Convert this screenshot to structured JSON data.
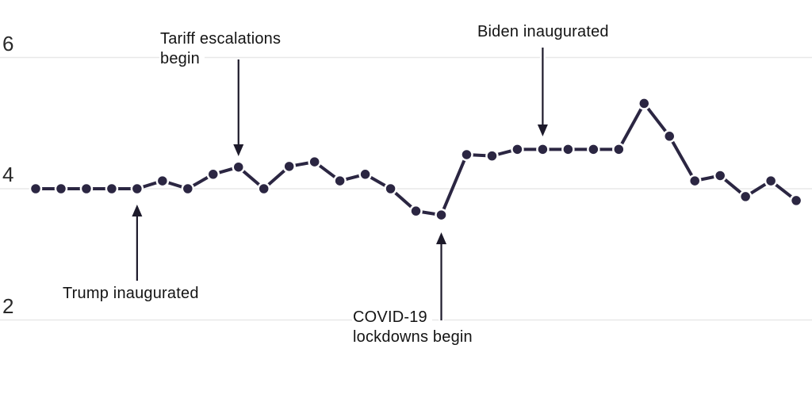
{
  "page": {
    "background_color": "#ffffff"
  },
  "chart_data": {
    "type": "line",
    "title": "",
    "marker": "circle",
    "series": [
      {
        "name": "main-series",
        "values": [
          4.0,
          4.0,
          4.0,
          4.0,
          4.0,
          4.12,
          4.0,
          4.22,
          4.33,
          4.0,
          4.34,
          4.41,
          4.12,
          4.22,
          4.0,
          3.66,
          3.6,
          4.52,
          4.5,
          4.6,
          4.6,
          4.6,
          4.6,
          4.6,
          5.3,
          4.8,
          4.12,
          4.2,
          3.88,
          4.12,
          3.82
        ]
      }
    ],
    "n_points": 31,
    "y_ticks": [
      6,
      4,
      2
    ],
    "y_tick_labels": [
      "6",
      "4",
      "2"
    ],
    "ylim": [
      0.7,
      6.9
    ],
    "grid": "horizontal",
    "legend": "none",
    "xlabel": "",
    "ylabel": "",
    "series_color": "#2b2642",
    "grid_color": "#e8e8e8",
    "annotation_color": "#1d1a2b",
    "annotations": [
      {
        "id": "trump",
        "lines": [
          "Trump inaugurated"
        ],
        "target_point": 4,
        "arrow_direction": "up"
      },
      {
        "id": "tariff",
        "lines": [
          "Tariff escalations",
          "begin"
        ],
        "target_point": 8,
        "arrow_direction": "down"
      },
      {
        "id": "covid",
        "lines": [
          "COVID-19",
          "lockdowns begin"
        ],
        "target_point": 16,
        "arrow_direction": "up"
      },
      {
        "id": "biden",
        "lines": [
          "Biden inaugurated"
        ],
        "target_point": 20,
        "arrow_direction": "down"
      }
    ]
  }
}
